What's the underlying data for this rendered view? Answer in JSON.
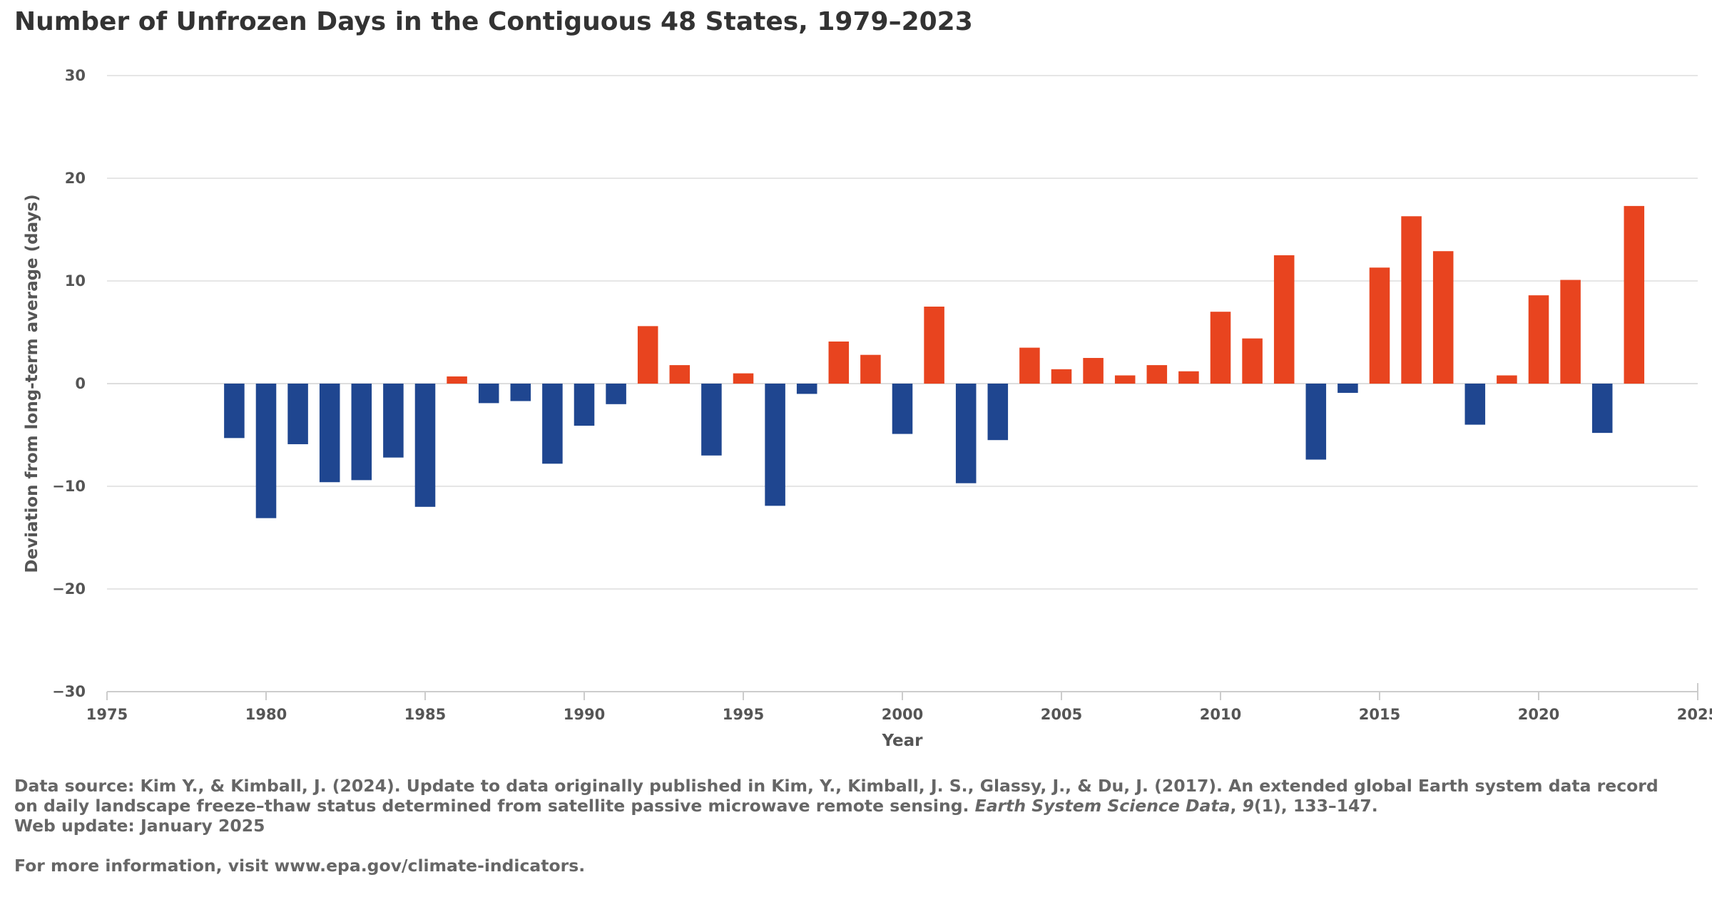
{
  "title": "Number of Unfrozen Days in the Contiguous 48 States, 1979–2023",
  "chart_data": {
    "type": "bar",
    "xlabel": "Year",
    "ylabel": "Deviation from long-term average (days)",
    "xlim": [
      1975,
      2025
    ],
    "ylim": [
      -30,
      30
    ],
    "x_ticks": [
      "1975",
      "1980",
      "1985",
      "1990",
      "1995",
      "2000",
      "2005",
      "2010",
      "2015",
      "2020",
      "2025"
    ],
    "y_ticks": [
      "30",
      "20",
      "10",
      "0",
      "−10",
      "−20",
      "−30"
    ],
    "grid": "horizontal",
    "legend": "none",
    "positive_color": "#e8441f",
    "negative_color": "#1f4690",
    "x": [
      1979,
      1980,
      1981,
      1982,
      1983,
      1984,
      1985,
      1986,
      1987,
      1988,
      1989,
      1990,
      1991,
      1992,
      1993,
      1994,
      1995,
      1996,
      1997,
      1998,
      1999,
      2000,
      2001,
      2002,
      2003,
      2004,
      2005,
      2006,
      2007,
      2008,
      2009,
      2010,
      2011,
      2012,
      2013,
      2014,
      2015,
      2016,
      2017,
      2018,
      2019,
      2020,
      2021,
      2022,
      2023
    ],
    "values": [
      -5.3,
      -13.1,
      -5.9,
      -9.6,
      -9.4,
      -7.2,
      -12.0,
      0.7,
      -1.9,
      -1.7,
      -7.8,
      -4.1,
      -2.0,
      5.6,
      1.8,
      -7.0,
      1.0,
      -11.9,
      -1.0,
      4.1,
      2.8,
      -4.9,
      7.5,
      -9.7,
      -5.5,
      3.5,
      1.4,
      2.5,
      0.8,
      1.8,
      1.2,
      7.0,
      4.4,
      12.5,
      -7.4,
      -0.9,
      11.3,
      16.3,
      12.9,
      -4.0,
      0.8,
      8.6,
      10.1,
      -4.8,
      17.3
    ]
  },
  "footer": {
    "source_prefix": "Data source: Kim Y., & Kimball, J. (2024). Update to data originally published in Kim, Y., Kimball, J. S., Glassy, J., & Du, J. (2017). An extended global Earth system data record on daily landscape freeze–thaw status determined from satellite passive microwave remote sensing. ",
    "source_journal": "Earth System Science Data",
    "source_sep": ", ",
    "source_volume": "9",
    "source_suffix": "(1), 133–147.",
    "web_update": "Web update: January 2025",
    "more_info": "For more information, visit www.epa.gov/climate-indicators."
  }
}
